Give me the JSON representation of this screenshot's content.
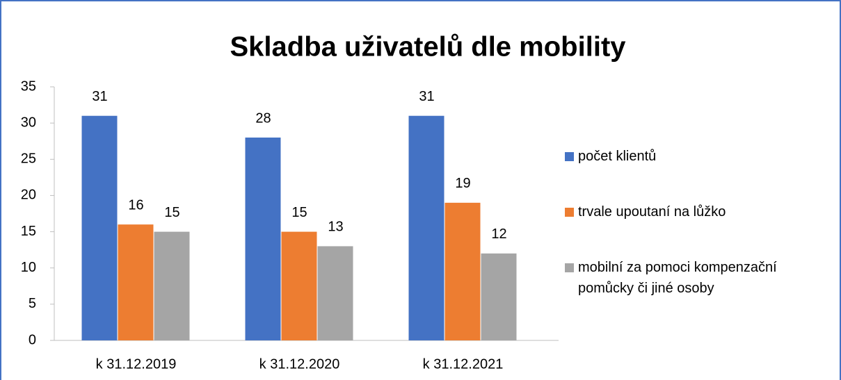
{
  "chart_data": {
    "type": "bar",
    "title": "Skladba uživatelů dle mobility",
    "categories": [
      "k 31.12.2019",
      "k 31.12.2020",
      "k 31.12.2021"
    ],
    "series": [
      {
        "name": "počet klientů",
        "color": "#4472c4",
        "values": [
          31,
          28,
          31
        ]
      },
      {
        "name": "trvale upoutaní na lůžko",
        "color": "#ed7d31",
        "values": [
          16,
          15,
          19
        ]
      },
      {
        "name": "mobilní za pomoci kompenzační pomůcky či jiné osoby",
        "color": "#a5a5a5",
        "values": [
          15,
          13,
          12
        ]
      }
    ],
    "ylim": [
      0,
      35
    ],
    "yticks": [
      0,
      5,
      10,
      15,
      20,
      25,
      30,
      35
    ],
    "grid": false,
    "legend": "right"
  }
}
